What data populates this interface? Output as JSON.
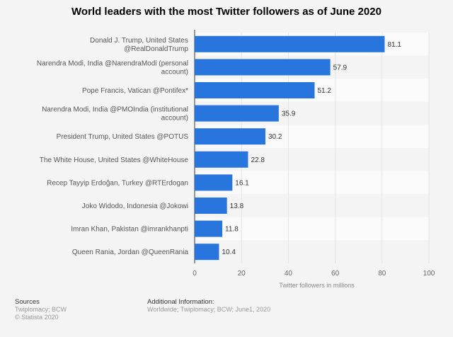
{
  "chart_data": {
    "type": "bar",
    "orientation": "horizontal",
    "title": "World leaders with the most Twitter followers as of June 2020",
    "xlabel": "Twitter followers in millions",
    "ylabel": "",
    "xlim": [
      0,
      100
    ],
    "xticks": [
      0,
      20,
      40,
      60,
      80,
      100
    ],
    "grid": true,
    "categories": [
      [
        "Donald J. Trump, United States",
        "@RealDonaldTrump"
      ],
      [
        "Narendra Modi, India @NarendraModi (personal",
        "account)"
      ],
      [
        "Pope Francis, Vatican @Pontifex*"
      ],
      [
        "Narendra Modi, India @PMOIndia (institutional",
        "account)"
      ],
      [
        "President Trump, United States @POTUS"
      ],
      [
        "The White House, United States @WhiteHouse"
      ],
      [
        "Recep Tayyip Erdoğan, Turkey @RTErdogan"
      ],
      [
        "Joko Widodo, Indonesia @Jokowi"
      ],
      [
        "Imran Khan, Pakistan @imrankhanpti"
      ],
      [
        "Queen Rania, Jordan @QueenRania"
      ]
    ],
    "values": [
      81.1,
      57.9,
      51.2,
      35.9,
      30.2,
      22.8,
      16.1,
      13.8,
      11.8,
      10.4
    ],
    "bar_color": "#2876dd"
  },
  "footer": {
    "sources_label": "Sources",
    "sources": "Twiplomacy; BCW",
    "copyright": "© Statista 2020",
    "additional_label": "Additional Information:",
    "additional": "Worldwide; Twiplomacy; BCW; June1, 2020"
  }
}
